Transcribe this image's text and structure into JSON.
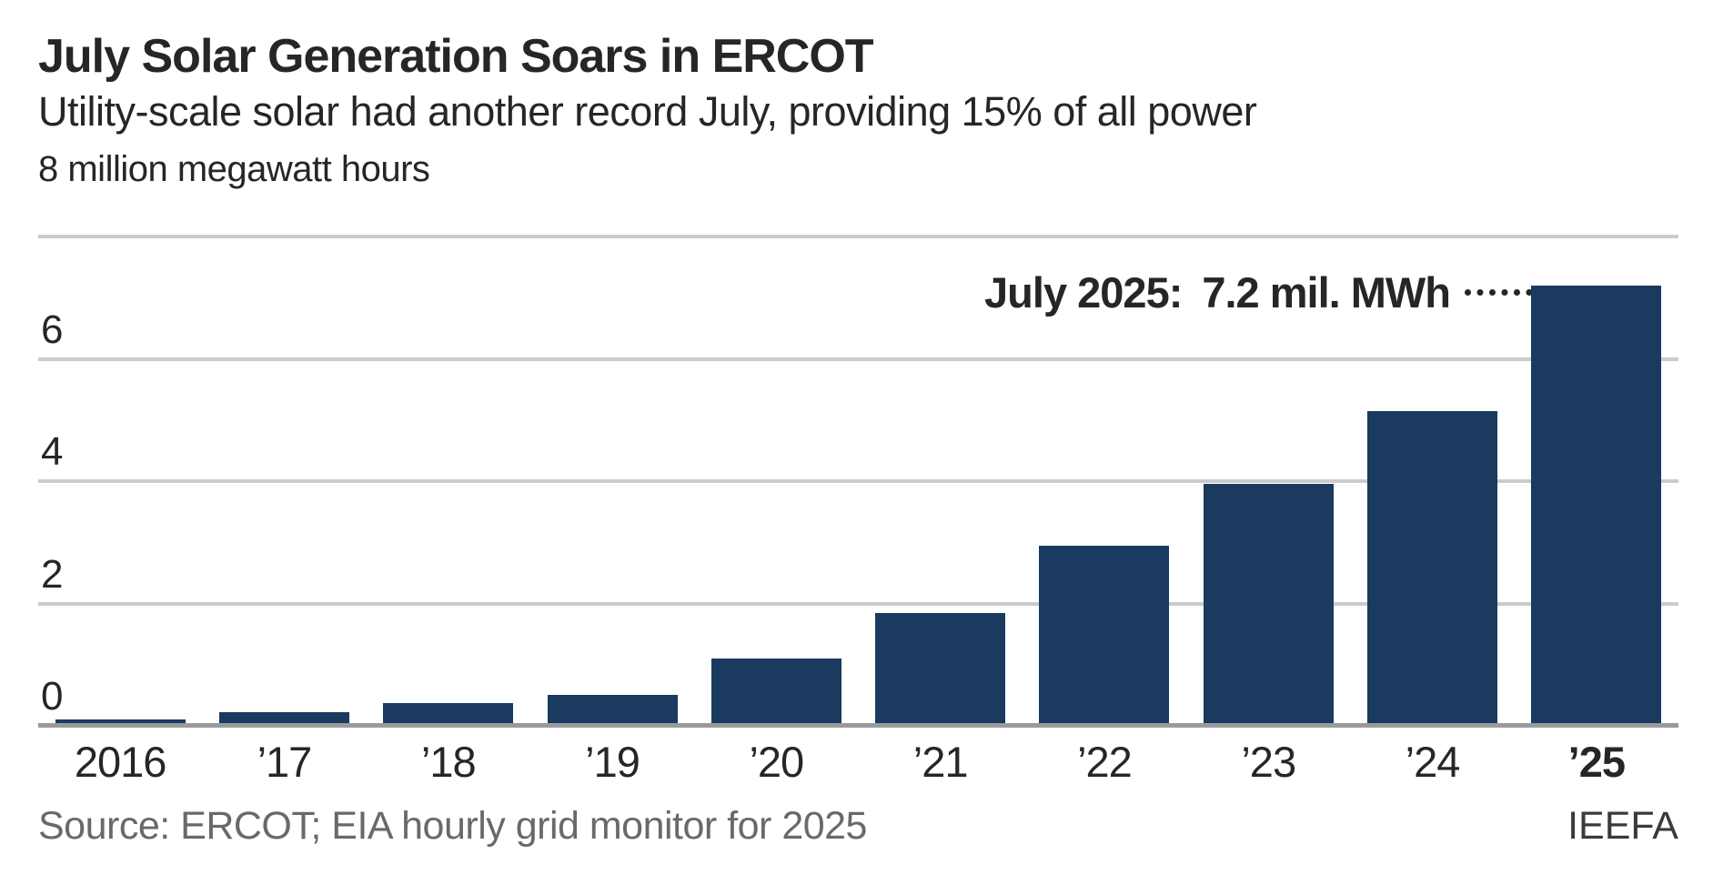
{
  "title": "July Solar Generation Soars in ERCOT",
  "subtitle": "Utility-scale solar had another record July, providing 15% of all power",
  "unit_label": "8 million megawatt hours",
  "annotation": {
    "label": "July 2025:",
    "value": "7.2 mil. MWh"
  },
  "source": "Source: ERCOT; EIA hourly grid monitor for 2025",
  "credit": "IEEFA",
  "colors": {
    "bar": "#1a3a5f",
    "gridline": "#cbcbcb",
    "baseline": "#9a9a9a",
    "text": "#262626",
    "source_text": "#696969"
  },
  "chart_data": {
    "type": "bar",
    "categories": [
      "2016",
      "’17",
      "’18",
      "’19",
      "’20",
      "’21",
      "’22",
      "’23",
      "’24",
      "’25"
    ],
    "values": [
      0.1,
      0.22,
      0.37,
      0.5,
      1.1,
      1.85,
      2.95,
      3.95,
      5.15,
      7.2
    ],
    "title": "July Solar Generation Soars in ERCOT",
    "xlabel": "",
    "ylabel": "million megawatt hours",
    "ylim": [
      0,
      8
    ],
    "yticks": [
      0,
      2,
      4,
      6,
      8
    ],
    "grid": true,
    "legend": false,
    "annotation_text": "July 2025: 7.2 mil. MWh",
    "last_category_bold": true
  }
}
